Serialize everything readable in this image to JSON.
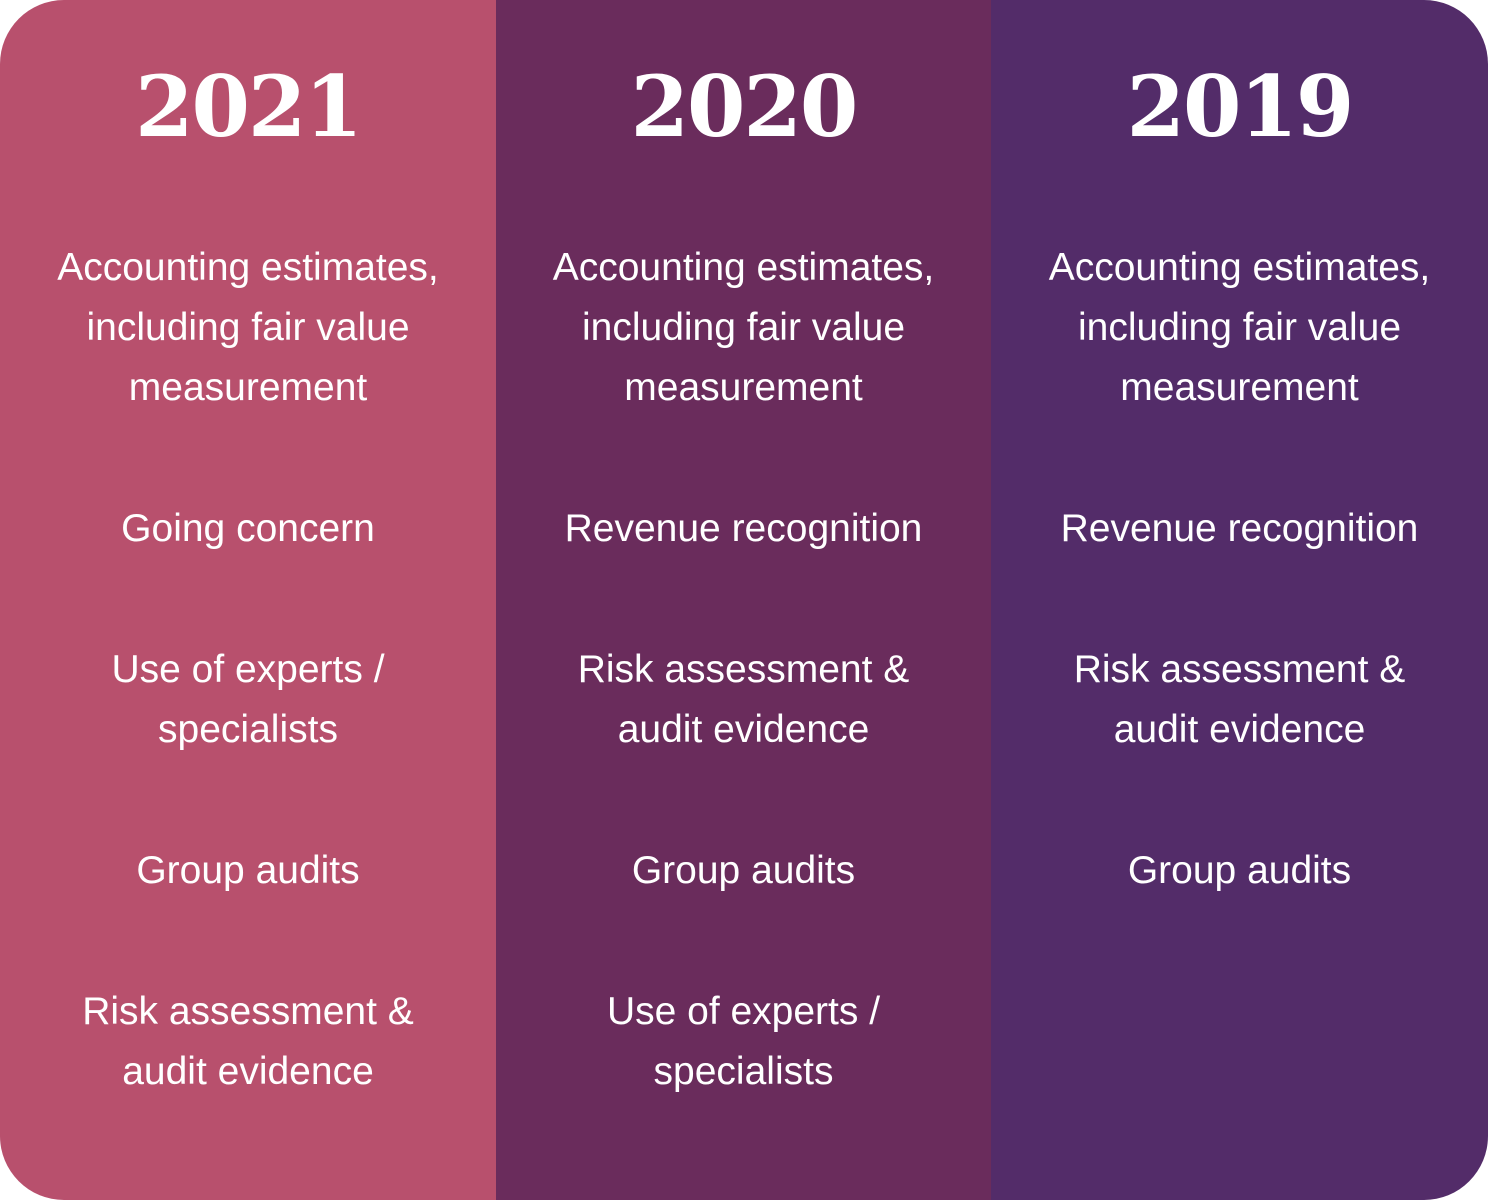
{
  "colors": {
    "col2021": "#B8506D",
    "col2020": "#6A2C5C",
    "col2019": "#532C69"
  },
  "columns": [
    {
      "year": "2021",
      "items": [
        "Accounting estimates,\nincluding fair value\nmeasurement",
        "Going concern",
        "Use of experts /\nspecialists",
        "Group audits",
        "Risk assessment &\naudit evidence"
      ]
    },
    {
      "year": "2020",
      "items": [
        "Accounting estimates,\nincluding fair value\nmeasurement",
        "Revenue recognition",
        "Risk assessment &\naudit evidence",
        "Group audits",
        "Use of experts /\nspecialists"
      ]
    },
    {
      "year": "2019",
      "items": [
        "Accounting estimates,\nincluding fair value\nmeasurement",
        "Revenue recognition",
        "Risk assessment &\naudit evidence",
        "Group audits"
      ]
    }
  ]
}
